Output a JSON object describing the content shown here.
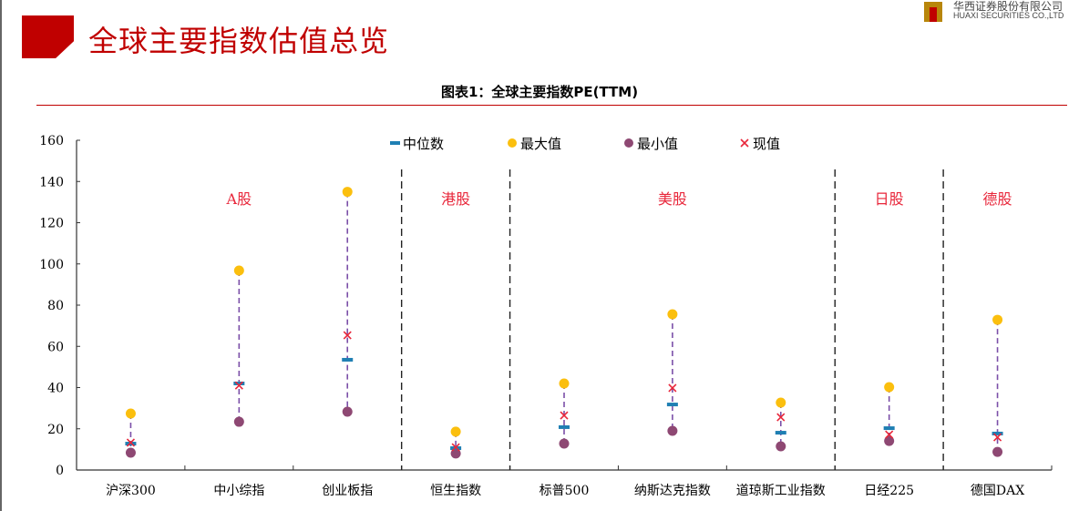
{
  "header": {
    "title": "全球主要指数估值总览",
    "logo_cn": "华西证券股份有限公司",
    "logo_en": "HUAXI SECURITIES CO.,LTD"
  },
  "chart_data": {
    "type": "scatter",
    "title": "图表1：全球主要指数PE(TTM)",
    "categories": [
      "沪深300",
      "中小综指",
      "创业板指",
      "恒生指数",
      "标普500",
      "纳斯达克指数",
      "道琼斯工业指数",
      "日经225",
      "德国DAX"
    ],
    "ylim": [
      0,
      160
    ],
    "yticks": [
      0,
      20,
      40,
      60,
      80,
      100,
      120,
      140,
      160
    ],
    "legend_position": "top",
    "series": [
      {
        "name": "中位数",
        "marker": "dash",
        "color": "#1f7fb3",
        "values": [
          12.8,
          42,
          53.5,
          10.6,
          20.8,
          31.8,
          18.1,
          20.3,
          17.7
        ]
      },
      {
        "name": "最大值",
        "marker": "circle",
        "color": "#fbbf0e",
        "values": [
          27.4,
          96.8,
          135,
          18.6,
          42,
          75.6,
          32.7,
          40.2,
          72.9
        ]
      },
      {
        "name": "最小值",
        "marker": "circle",
        "color": "#8e4873",
        "values": [
          8.4,
          23.4,
          28.3,
          8,
          12.8,
          19,
          11.5,
          14.1,
          8.8
        ]
      },
      {
        "name": "现值",
        "marker": "x",
        "color": "#e8263a",
        "values": [
          13.3,
          41,
          65.4,
          11,
          26.5,
          39.8,
          25.6,
          17.2,
          15.9
        ]
      }
    ],
    "groups": [
      {
        "label": "A股",
        "from": 0,
        "to": 2
      },
      {
        "label": "港股",
        "from": 3,
        "to": 3
      },
      {
        "label": "美股",
        "from": 4,
        "to": 6
      },
      {
        "label": "日股",
        "from": 7,
        "to": 7
      },
      {
        "label": "德股",
        "from": 8,
        "to": 8
      }
    ],
    "group_color": "#e8263a",
    "range_line_color": "#7b4fa8"
  }
}
